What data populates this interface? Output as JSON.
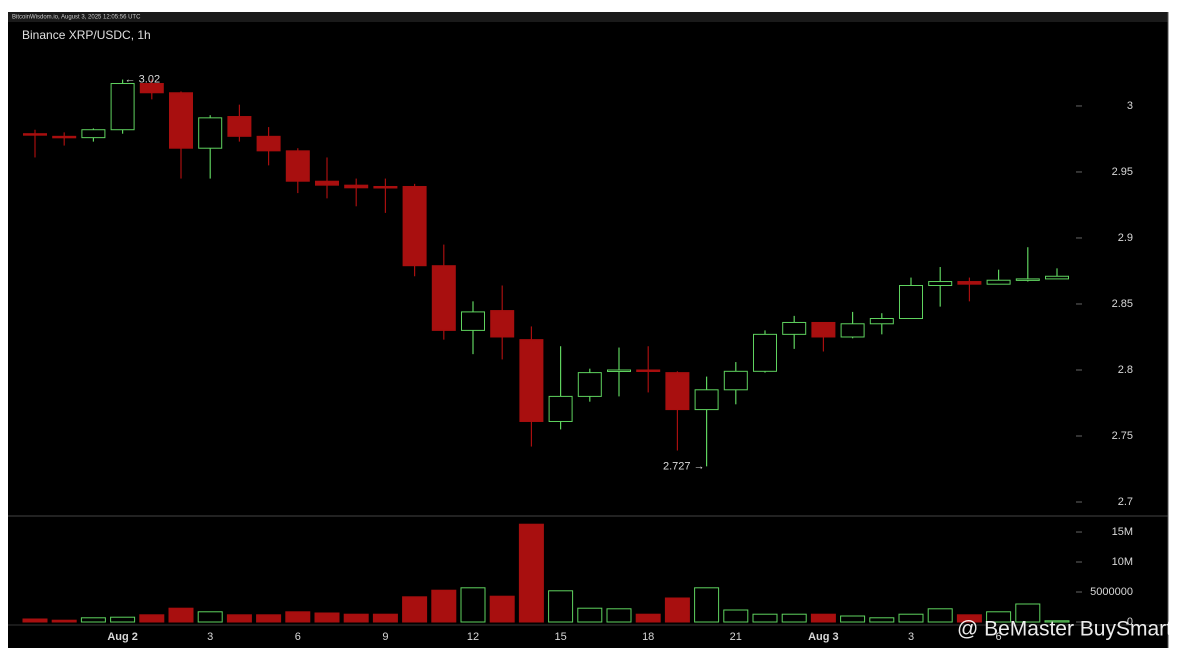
{
  "chart_data": {
    "type": "candlestick",
    "header": "BitcoinWisdom.io, August 3, 2025 12:05:56 UTC",
    "title": "Binance XRP/USDC, 1h",
    "watermark": "@ BeMaster BuySmart",
    "annotations": [
      "← 3.02",
      "2.727 →"
    ],
    "categories": [
      null,
      null,
      null,
      "Aug 2",
      null,
      null,
      "3",
      null,
      null,
      "6",
      null,
      null,
      "9",
      null,
      null,
      "12",
      null,
      null,
      "15",
      null,
      null,
      "18",
      null,
      null,
      "21",
      null,
      null,
      "Aug 3",
      null,
      null,
      "3",
      null,
      null,
      "6",
      null,
      null
    ],
    "open": [
      2.979,
      2.977,
      2.976,
      2.982,
      3.017,
      3.01,
      2.968,
      2.992,
      2.977,
      2.966,
      2.943,
      2.94,
      2.939,
      2.939,
      2.879,
      2.83,
      2.845,
      2.823,
      2.761,
      2.78,
      2.799,
      2.8,
      2.798,
      2.77,
      2.785,
      2.799,
      2.827,
      2.836,
      2.825,
      2.835,
      2.839,
      2.864,
      2.867,
      2.865,
      2.868,
      2.869
    ],
    "high": [
      2.982,
      2.98,
      2.983,
      3.02,
      3.02,
      3.011,
      2.993,
      3.001,
      2.984,
      2.968,
      2.961,
      2.945,
      2.945,
      2.941,
      2.895,
      2.852,
      2.864,
      2.833,
      2.818,
      2.801,
      2.817,
      2.818,
      2.799,
      2.795,
      2.806,
      2.83,
      2.841,
      2.836,
      2.844,
      2.843,
      2.87,
      2.878,
      2.87,
      2.876,
      2.893,
      2.877
    ],
    "low": [
      2.961,
      2.97,
      2.973,
      2.979,
      3.005,
      2.945,
      2.945,
      2.973,
      2.955,
      2.934,
      2.93,
      2.924,
      2.919,
      2.871,
      2.823,
      2.812,
      2.808,
      2.742,
      2.755,
      2.776,
      2.78,
      2.783,
      2.739,
      2.727,
      2.774,
      2.798,
      2.816,
      2.814,
      2.824,
      2.827,
      2.839,
      2.848,
      2.852,
      2.865,
      2.867,
      2.869
    ],
    "close": [
      2.978,
      2.976,
      2.982,
      3.017,
      3.01,
      2.968,
      2.991,
      2.977,
      2.966,
      2.943,
      2.94,
      2.938,
      2.938,
      2.879,
      2.83,
      2.844,
      2.825,
      2.761,
      2.78,
      2.798,
      2.8,
      2.799,
      2.77,
      2.785,
      2.799,
      2.827,
      2.836,
      2.825,
      2.835,
      2.839,
      2.864,
      2.867,
      2.865,
      2.868,
      2.869,
      2.871
    ],
    "volume": [
      500000,
      300000,
      700000,
      800000,
      1200000,
      2300000,
      1700000,
      1200000,
      1200000,
      1700000,
      1500000,
      1300000,
      1300000,
      4200000,
      5300000,
      5700000,
      4300000,
      16300000,
      5200000,
      2300000,
      2200000,
      1300000,
      4000000,
      5700000,
      2000000,
      1300000,
      1300000,
      1300000,
      1000000,
      700000,
      1300000,
      2200000,
      1200000,
      1700000,
      3000000,
      200000
    ],
    "up_color": "#5fd35f",
    "down_color": "#a80f0f",
    "ylim": [
      2.6894,
      3.0636
    ],
    "yticks": [
      2.7,
      2.75,
      2.8,
      2.85,
      2.9,
      2.95,
      3
    ],
    "vlim": [
      0,
      17670000
    ],
    "vticks": [
      0,
      {
        "value": 5000000,
        "label": "5000000"
      },
      {
        "value": 10000000,
        "label": "10M"
      },
      {
        "value": 15000000,
        "label": "15M"
      }
    ]
  }
}
